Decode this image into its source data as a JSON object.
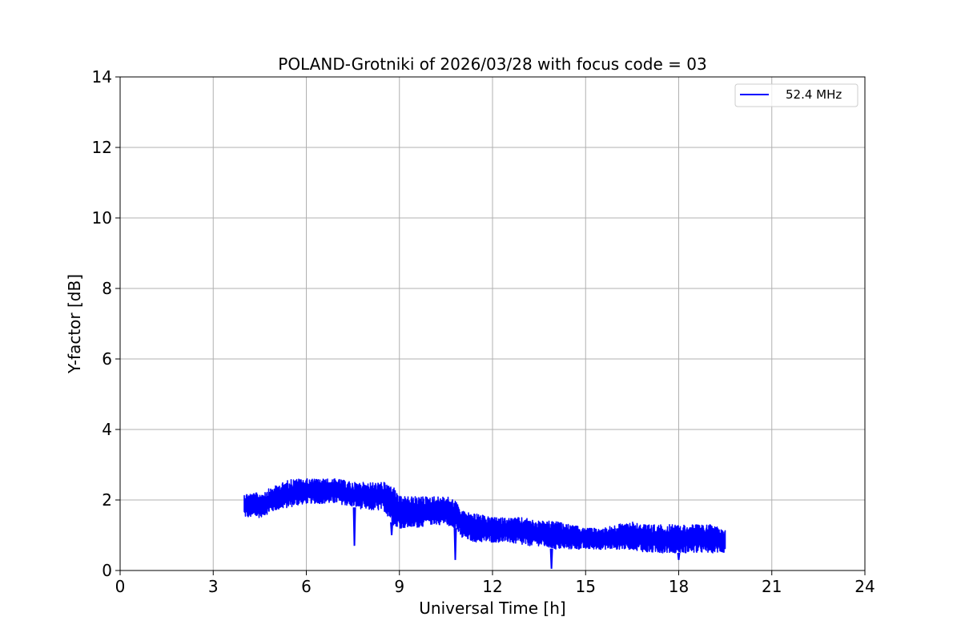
{
  "chart_data": {
    "type": "line",
    "title": "POLAND-Grotniki of 2026/03/28 with focus code = 03",
    "xlabel": "Universal Time [h]",
    "ylabel": "Y-factor [dB]",
    "xlim": [
      0,
      24
    ],
    "ylim": [
      0,
      14
    ],
    "xticks": [
      0,
      3,
      6,
      9,
      12,
      15,
      18,
      21,
      24
    ],
    "yticks": [
      0,
      2,
      4,
      6,
      8,
      10,
      12,
      14
    ],
    "xtick_labels": [
      "0",
      "3",
      "6",
      "9",
      "12",
      "15",
      "18",
      "21",
      "24"
    ],
    "ytick_labels": [
      "0",
      "2",
      "4",
      "6",
      "8",
      "10",
      "12",
      "14"
    ],
    "grid": true,
    "legend_position": "top-right",
    "series": [
      {
        "name": "52.4 MHz",
        "color": "#0000ff",
        "x_range": [
          4.0,
          19.5
        ],
        "envelope": {
          "x": [
            4.0,
            4.5,
            5.0,
            5.5,
            6.0,
            6.5,
            7.0,
            7.5,
            8.0,
            8.5,
            8.8,
            9.0,
            9.5,
            10.0,
            10.5,
            10.8,
            11.0,
            11.5,
            12.0,
            12.5,
            13.0,
            13.5,
            14.0,
            14.5,
            15.0,
            15.5,
            16.0,
            16.5,
            17.0,
            17.5,
            18.0,
            18.5,
            19.0,
            19.5
          ],
          "low": [
            1.5,
            1.5,
            1.7,
            1.8,
            1.9,
            1.9,
            1.9,
            1.8,
            1.7,
            1.7,
            1.3,
            1.2,
            1.2,
            1.3,
            1.3,
            1.2,
            0.9,
            0.8,
            0.8,
            0.8,
            0.7,
            0.7,
            0.6,
            0.6,
            0.6,
            0.6,
            0.6,
            0.6,
            0.5,
            0.5,
            0.5,
            0.5,
            0.5,
            0.5
          ],
          "high": [
            2.2,
            2.2,
            2.4,
            2.6,
            2.6,
            2.6,
            2.6,
            2.5,
            2.5,
            2.5,
            2.4,
            2.1,
            2.1,
            2.1,
            2.1,
            2.0,
            1.7,
            1.6,
            1.5,
            1.5,
            1.5,
            1.4,
            1.4,
            1.3,
            1.2,
            1.2,
            1.3,
            1.4,
            1.3,
            1.3,
            1.3,
            1.3,
            1.3,
            1.2
          ]
        },
        "dips": [
          {
            "x": 7.55,
            "y": 0.7
          },
          {
            "x": 8.75,
            "y": 1.0
          },
          {
            "x": 10.8,
            "y": 0.3
          },
          {
            "x": 13.9,
            "y": 0.05
          },
          {
            "x": 18.0,
            "y": 0.3
          }
        ]
      }
    ]
  }
}
